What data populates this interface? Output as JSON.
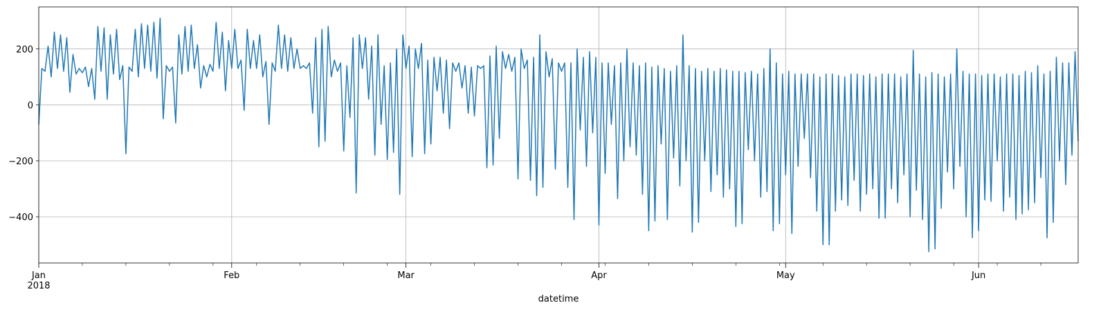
{
  "chart_data": {
    "type": "line",
    "xlabel": "datetime",
    "color": "#1f77b4",
    "grid": true,
    "xlim": [
      0,
      167
    ],
    "xticks": [
      {
        "value": 0,
        "label": "Jan\n2018"
      },
      {
        "value": 31,
        "label": "Feb"
      },
      {
        "value": 59,
        "label": "Mar"
      },
      {
        "value": 90,
        "label": "Apr"
      },
      {
        "value": 120,
        "label": "May"
      },
      {
        "value": 151,
        "label": "Jun"
      }
    ],
    "xminorticks": [
      7,
      14,
      21,
      28,
      35,
      42,
      49,
      56,
      63,
      70,
      77,
      84,
      91,
      98,
      105,
      112,
      119,
      126,
      133,
      140,
      147,
      154,
      161
    ],
    "ylim": [
      -565,
      350
    ],
    "yticks": [
      {
        "value": -400,
        "label": "−400"
      },
      {
        "value": -200,
        "label": "−200"
      },
      0,
      200
    ],
    "x": [
      0,
      0.5,
      1,
      1.5,
      2,
      2.5,
      3,
      3.5,
      4,
      4.5,
      5,
      5.5,
      6,
      6.5,
      7,
      7.5,
      8,
      8.5,
      9,
      9.5,
      10,
      10.5,
      11,
      11.5,
      12,
      12.5,
      13,
      13.5,
      14,
      14.5,
      15,
      15.5,
      16,
      16.5,
      17,
      17.5,
      18,
      18.5,
      19,
      19.5,
      20,
      20.5,
      21,
      21.5,
      22,
      22.5,
      23,
      23.5,
      24,
      24.5,
      25,
      25.5,
      26,
      26.5,
      27,
      27.5,
      28,
      28.5,
      29,
      29.5,
      30,
      30.5,
      31,
      31.5,
      32,
      32.5,
      33,
      33.5,
      34,
      34.5,
      35,
      35.5,
      36,
      36.5,
      37,
      37.5,
      38,
      38.5,
      39,
      39.5,
      40,
      40.5,
      41,
      41.5,
      42,
      42.5,
      43,
      43.5,
      44,
      44.5,
      45,
      45.5,
      46,
      46.5,
      47,
      47.5,
      48,
      48.5,
      49,
      49.5,
      50,
      50.5,
      51,
      51.5,
      52,
      52.5,
      53,
      53.5,
      54,
      54.5,
      55,
      55.5,
      56,
      56.5,
      57,
      57.5,
      58,
      58.5,
      59,
      59.5,
      60,
      60.5,
      61,
      61.5,
      62,
      62.5,
      63,
      63.5,
      64,
      64.5,
      65,
      65.5,
      66,
      66.5,
      67,
      67.5,
      68,
      68.5,
      69,
      69.5,
      70,
      70.5,
      71,
      71.5,
      72,
      72.5,
      73,
      73.5,
      74,
      74.5,
      75,
      75.5,
      76,
      76.5,
      77,
      77.5,
      78,
      78.5,
      79,
      79.5,
      80,
      80.5,
      81,
      81.5,
      82,
      82.5,
      83,
      83.5,
      84,
      84.5,
      85,
      85.5,
      86,
      86.5,
      87,
      87.5,
      88,
      88.5,
      89,
      89.5,
      90,
      90.5,
      91,
      91.5,
      92,
      92.5,
      93,
      93.5,
      94,
      94.5,
      95,
      95.5,
      96,
      96.5,
      97,
      97.5,
      98,
      98.5,
      99,
      99.5,
      100,
      100.5,
      101,
      101.5,
      102,
      102.5,
      103,
      103.5,
      104,
      104.5,
      105,
      105.5,
      106,
      106.5,
      107,
      107.5,
      108,
      108.5,
      109,
      109.5,
      110,
      110.5,
      111,
      111.5,
      112,
      112.5,
      113,
      113.5,
      114,
      114.5,
      115,
      115.5,
      116,
      116.5,
      117,
      117.5,
      118,
      118.5,
      119,
      119.5,
      120,
      120.5,
      121,
      121.5,
      122,
      122.5,
      123,
      123.5,
      124,
      124.5,
      125,
      125.5,
      126,
      126.5,
      127,
      127.5,
      128,
      128.5,
      129,
      129.5,
      130,
      130.5,
      131,
      131.5,
      132,
      132.5,
      133,
      133.5,
      134,
      134.5,
      135,
      135.5,
      136,
      136.5,
      137,
      137.5,
      138,
      138.5,
      139,
      139.5,
      140,
      140.5,
      141,
      141.5,
      142,
      142.5,
      143,
      143.5,
      144,
      144.5,
      145,
      145.5,
      146,
      146.5,
      147,
      147.5,
      148,
      148.5,
      149,
      149.5,
      150,
      150.5,
      151,
      151.5,
      152,
      152.5,
      153,
      153.5,
      154,
      154.5,
      155,
      155.5,
      156,
      156.5,
      157,
      157.5,
      158,
      158.5,
      159,
      159.5,
      160,
      160.5,
      161,
      161.5,
      162,
      162.5,
      163,
      163.5,
      164,
      164.5,
      165,
      165.5,
      166,
      166.5,
      167
    ],
    "values": [
      -70,
      130,
      120,
      210,
      100,
      260,
      130,
      250,
      120,
      240,
      45,
      180,
      110,
      130,
      115,
      135,
      65,
      130,
      20,
      280,
      120,
      275,
      20,
      250,
      110,
      270,
      90,
      140,
      -175,
      135,
      120,
      270,
      100,
      290,
      130,
      285,
      120,
      295,
      95,
      310,
      -50,
      140,
      120,
      135,
      -65,
      250,
      110,
      280,
      120,
      285,
      130,
      215,
      60,
      140,
      100,
      145,
      120,
      295,
      130,
      260,
      50,
      230,
      130,
      270,
      130,
      160,
      -20,
      270,
      130,
      230,
      130,
      250,
      100,
      155,
      -70,
      150,
      120,
      285,
      130,
      250,
      120,
      240,
      130,
      200,
      130,
      140,
      130,
      150,
      -30,
      240,
      -150,
      270,
      -130,
      280,
      100,
      160,
      120,
      150,
      -165,
      140,
      -45,
      240,
      -315,
      250,
      130,
      240,
      20,
      210,
      -180,
      250,
      -70,
      140,
      -195,
      150,
      -170,
      200,
      -320,
      250,
      130,
      210,
      -185,
      200,
      130,
      220,
      -175,
      160,
      -140,
      170,
      50,
      170,
      -30,
      160,
      -85,
      150,
      120,
      150,
      60,
      140,
      -30,
      135,
      -40,
      140,
      130,
      140,
      -225,
      175,
      -215,
      210,
      -120,
      190,
      130,
      180,
      120,
      170,
      -265,
      200,
      130,
      160,
      -270,
      170,
      -325,
      250,
      -295,
      190,
      100,
      165,
      -230,
      150,
      120,
      150,
      -295,
      150,
      -410,
      200,
      -90,
      170,
      -220,
      190,
      -100,
      170,
      -430,
      150,
      -245,
      150,
      -70,
      140,
      -335,
      150,
      -200,
      200,
      -150,
      150,
      -180,
      140,
      -320,
      150,
      -450,
      135,
      -415,
      140,
      -140,
      130,
      -410,
      120,
      -190,
      140,
      -290,
      250,
      -200,
      140,
      -455,
      130,
      -420,
      120,
      -200,
      130,
      -310,
      120,
      -250,
      130,
      -330,
      125,
      -300,
      120,
      -435,
      120,
      -425,
      115,
      -160,
      120,
      -200,
      110,
      -330,
      130,
      -310,
      200,
      -450,
      150,
      -425,
      110,
      -250,
      120,
      -460,
      110,
      -220,
      110,
      -120,
      110,
      -260,
      110,
      -380,
      100,
      -500,
      110,
      -500,
      110,
      -380,
      105,
      -340,
      100,
      -360,
      110,
      -270,
      110,
      -380,
      105,
      -320,
      110,
      -300,
      100,
      -405,
      110,
      -405,
      110,
      -300,
      110,
      -350,
      100,
      -250,
      110,
      -400,
      195,
      -305,
      110,
      -410,
      100,
      -525,
      115,
      -515,
      110,
      -370,
      100,
      -240,
      110,
      -300,
      200,
      -220,
      120,
      -400,
      110,
      -475,
      110,
      -450,
      105,
      -340,
      110,
      -345,
      110,
      -200,
      100,
      -380,
      110,
      -330,
      110,
      -410,
      105,
      -390,
      120,
      -375,
      115,
      -350,
      140,
      -260,
      110,
      -475,
      120,
      -420,
      170,
      -200,
      150,
      -285,
      150,
      -180,
      190,
      -130
    ]
  }
}
